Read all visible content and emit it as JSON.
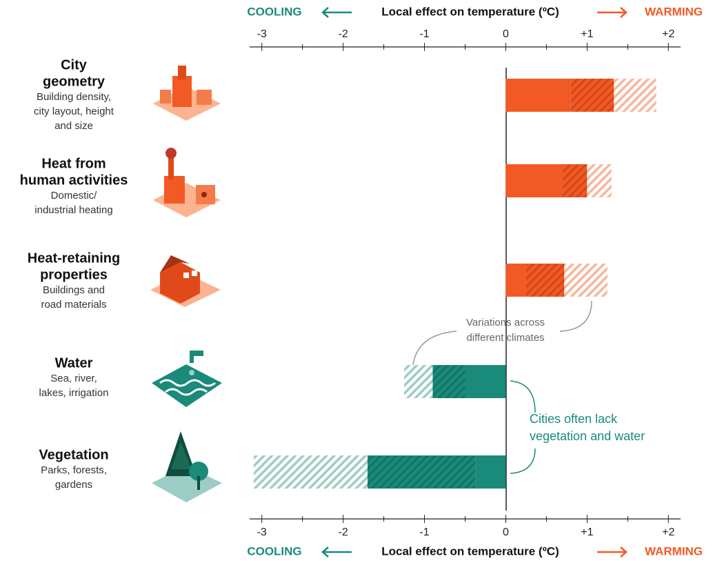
{
  "chart_data": {
    "type": "range-bar",
    "axis_label": "Local effect on temperature (ºC)",
    "left_label": "COOLING",
    "right_label": "WARMING",
    "left_color": "#1a8a7a",
    "right_color": "#f15a24",
    "xlim": [
      -3.15,
      2.15
    ],
    "xticks": [
      -3,
      -2,
      -1,
      0,
      {
        "value": 1,
        "label": "+1"
      },
      {
        "value": 2,
        "label": "+2"
      }
    ],
    "categories": [
      [
        "City",
        "geometry"
      ],
      [
        "Heat from",
        "human activities"
      ],
      [
        "Heat-retaining",
        "properties"
      ],
      [
        "Water"
      ],
      [
        "Vegetation"
      ]
    ],
    "descriptions": [
      [
        "Building density,",
        "city layout, height",
        "and size"
      ],
      [
        "Domestic/",
        "industrial heating"
      ],
      [
        "Buildings and",
        "road materials"
      ],
      [
        "Sea, river,",
        "lakes, irrigation"
      ],
      [
        "Parks, forests,",
        "gardens"
      ]
    ],
    "colors": [
      "#f15a24",
      "#f15a24",
      "#f15a24",
      "#1a8a7a",
      "#1a8a7a"
    ],
    "series": [
      {
        "values": [
          0.8,
          0.7,
          0.25,
          -0.5,
          -0.37
        ]
      },
      {
        "values": [
          1.33,
          1.0,
          0.72,
          -0.9,
          -1.7
        ]
      },
      {
        "values": [
          1.85,
          1.3,
          1.25,
          -1.25,
          -3.1
        ]
      }
    ],
    "annotations": [
      {
        "lines": [
          "Variations across",
          "different climates"
        ],
        "color": "#666666"
      },
      {
        "lines": [
          "Cities often lack",
          "vegetation and water"
        ],
        "color": "#1a8a7a"
      }
    ]
  }
}
